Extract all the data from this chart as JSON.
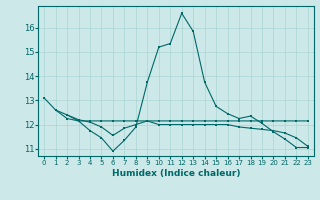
{
  "title": "",
  "xlabel": "Humidex (Indice chaleur)",
  "bg_color": "#cce8e8",
  "line_color": "#006868",
  "grid_color": "#aad4d4",
  "xlim": [
    -0.5,
    23.5
  ],
  "ylim": [
    10.7,
    16.9
  ],
  "yticks": [
    11,
    12,
    13,
    14,
    15,
    16
  ],
  "xticks": [
    0,
    1,
    2,
    3,
    4,
    5,
    6,
    7,
    8,
    9,
    10,
    11,
    12,
    13,
    14,
    15,
    16,
    17,
    18,
    19,
    20,
    21,
    22,
    23
  ],
  "line1_x": [
    0,
    1,
    2,
    3,
    4,
    5,
    6,
    7,
    8,
    9,
    10,
    11,
    12,
    13,
    14,
    15,
    16,
    17,
    18,
    19,
    20,
    21,
    22,
    23
  ],
  "line1_y": [
    13.1,
    12.6,
    12.4,
    12.15,
    11.75,
    11.45,
    10.9,
    11.35,
    11.9,
    13.75,
    15.2,
    15.35,
    16.6,
    15.85,
    13.75,
    12.75,
    12.45,
    12.25,
    12.35,
    12.05,
    11.7,
    11.4,
    11.05,
    11.05
  ],
  "line2_x": [
    1,
    2,
    3,
    4,
    5,
    6,
    7,
    8,
    9,
    10,
    11,
    12,
    13,
    14,
    15,
    16,
    17,
    18,
    19,
    20,
    21,
    22,
    23
  ],
  "line2_y": [
    12.6,
    12.25,
    12.15,
    12.15,
    12.15,
    12.15,
    12.15,
    12.15,
    12.15,
    12.15,
    12.15,
    12.15,
    12.15,
    12.15,
    12.15,
    12.15,
    12.15,
    12.15,
    12.15,
    12.15,
    12.15,
    12.15,
    12.15
  ],
  "line3_x": [
    2,
    3,
    4,
    5,
    6,
    7,
    8,
    9,
    10,
    11,
    12,
    13,
    14,
    15,
    16,
    17,
    18,
    19,
    20,
    21,
    22,
    23
  ],
  "line3_y": [
    12.4,
    12.2,
    12.1,
    11.9,
    11.55,
    11.85,
    12.0,
    12.15,
    12.0,
    12.0,
    12.0,
    12.0,
    12.0,
    12.0,
    12.0,
    11.9,
    11.85,
    11.8,
    11.75,
    11.65,
    11.45,
    11.1
  ]
}
